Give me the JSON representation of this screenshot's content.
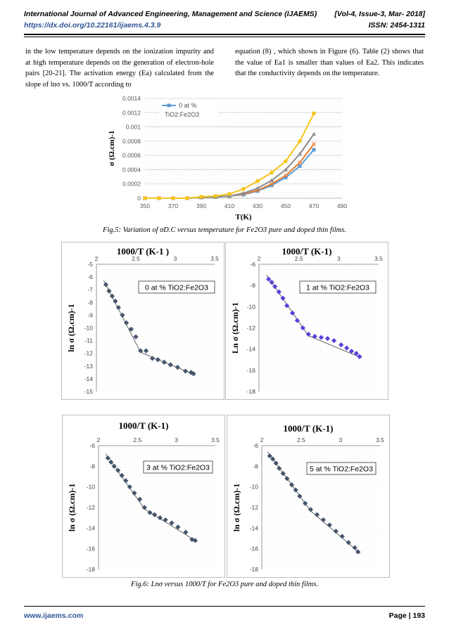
{
  "header": {
    "journal": "International Journal of Advanced Engineering, Management and Science (IJAEMS)",
    "volume": "[Vol-4, Issue-3, Mar- 2018]",
    "doi": "https://dx.doi.org/10.22161/ijaems.4.3.9",
    "issn": "ISSN: 2454-1311"
  },
  "body": {
    "left_text": "in the low temperature depends on the ionization impurity and at high temperature depends on the generation of electron-hole pairs [20-21]. The activation energy (Ea) calculated from the slope of lnσ vs. 1000/T according to",
    "right_text": "equation (8) , which shown in Figure (6). Table (2) shows that the value of Ea1 is smaller than values of Ea2. This indicates that the conductivity depends on the temperature."
  },
  "captions": {
    "fig5": "Fig.5: Variation of σD.C versus temperature for Fe2O3 pure and doped thin films.",
    "fig6": "Fig.6: Lnσ versus 1000/T for Fe2O3 pure and doped thin films."
  },
  "footer": {
    "site": "www.ijaems.com",
    "page": "Page | 193"
  },
  "fig5": {
    "chart_data": {
      "type": "line",
      "xlabel": "T(K)",
      "ylabel": "σ (Ω.cm)-1",
      "xlim": [
        350,
        490
      ],
      "ylim": [
        0,
        0.0014
      ],
      "xticks": [
        "350",
        "370",
        "390",
        "410",
        "430",
        "450",
        "470",
        "490"
      ],
      "yticks": [
        "0",
        "0.0002",
        "0.0004",
        "0.0006",
        "0.0008",
        "0.001",
        "0.0012",
        "0.0014"
      ],
      "legend": [
        "0 at %",
        "TiO2:Fe2O3"
      ],
      "x": [
        350,
        360,
        370,
        380,
        390,
        400,
        410,
        420,
        430,
        440,
        450,
        460,
        470
      ],
      "series": [
        {
          "name": "0 at % TiO2:Fe2O3",
          "color": "#5b9bd5",
          "marker": "square",
          "values": [
            0,
            0,
            0,
            0,
            1e-05,
            1.5e-05,
            3e-05,
            5e-05,
            0.0001,
            0.00018,
            0.00029,
            0.00045,
            0.00068
          ]
        },
        {
          "color": "#ed7d31",
          "marker": "x",
          "values": [
            0,
            0,
            0,
            0,
            1e-05,
            2e-05,
            3e-05,
            6e-05,
            0.00011,
            0.0002,
            0.00032,
            0.0005,
            0.00076
          ]
        },
        {
          "color": "#8c8c8c",
          "marker": "triangle",
          "values": [
            0,
            0,
            0,
            0,
            1e-05,
            2e-05,
            3e-05,
            7e-05,
            0.00014,
            0.00025,
            0.0004,
            0.00062,
            0.0009
          ]
        },
        {
          "color": "#f5c518",
          "marker": "circle",
          "values": [
            0,
            0,
            0,
            0,
            2e-05,
            3e-05,
            6e-05,
            0.00013,
            0.00024,
            0.00036,
            0.00052,
            0.0008,
            0.00119
          ]
        }
      ],
      "grid": true,
      "legend_position": "top-left"
    }
  },
  "fig6": [
    {
      "chart_data": {
        "type": "scatter",
        "title": "1000/T (K-1 )",
        "ylabel": "ln σ (Ω.cm)-1",
        "label": "0 at % TiO2:Fe2O3",
        "color": "#44546a",
        "xlim": [
          2,
          3.5
        ],
        "ylim": [
          -15,
          -5
        ],
        "xticks": [
          "2",
          "2.5",
          "3",
          "3.5"
        ],
        "yticks": [
          "-5",
          "-6",
          "-7",
          "-8",
          "-9",
          "-10",
          "-11",
          "-12",
          "-13",
          "-14",
          "-15"
        ],
        "x": [
          2.12,
          2.16,
          2.2,
          2.24,
          2.28,
          2.33,
          2.38,
          2.44,
          2.5,
          2.56,
          2.63,
          2.71,
          2.78,
          2.86,
          2.94,
          3.03,
          3.13,
          3.2,
          3.23
        ],
        "y": [
          -6.6,
          -7.1,
          -7.5,
          -7.9,
          -8.4,
          -9.0,
          -9.6,
          -10.1,
          -10.7,
          -11.8,
          -11.8,
          -12.4,
          -12.5,
          -12.7,
          -12.9,
          -13.1,
          -13.4,
          -13.5,
          -13.6
        ]
      }
    },
    {
      "chart_data": {
        "type": "scatter",
        "title": "1000/T (K-1)",
        "ylabel": "Ln σ (Ω.cm)-1",
        "label": "1 at % TiO2:Fe2O3",
        "color": "#5b3fd9",
        "xlim": [
          2,
          3.5
        ],
        "ylim": [
          -18,
          -6
        ],
        "xticks": [
          "2",
          "2.5",
          "3",
          "3.5"
        ],
        "yticks": [
          "-6",
          "-8",
          "-10",
          "-12",
          "-14",
          "-16",
          "-18"
        ],
        "x": [
          2.12,
          2.16,
          2.2,
          2.25,
          2.3,
          2.35,
          2.42,
          2.48,
          2.55,
          2.62,
          2.7,
          2.78,
          2.86,
          2.94,
          3.03,
          3.1,
          3.16,
          3.22,
          3.26
        ],
        "y": [
          -7.4,
          -7.7,
          -8.1,
          -8.6,
          -9.2,
          -9.9,
          -10.6,
          -11.3,
          -12.0,
          -12.6,
          -12.8,
          -12.9,
          -13.0,
          -13.2,
          -13.6,
          -13.9,
          -14.2,
          -14.4,
          -14.7
        ]
      }
    },
    {
      "chart_data": {
        "type": "scatter",
        "title": "1000/T (K-1)",
        "ylabel": "ln σ (Ω.cm)-1",
        "label": "3 at % TiO2:Fe2O3",
        "color": "#44546a",
        "xlim": [
          2,
          3.5
        ],
        "ylim": [
          -18,
          -6
        ],
        "xticks": [
          "2",
          "2.5",
          "3",
          "3.5"
        ],
        "yticks": [
          "-6",
          "-8",
          "-10",
          "-12",
          "-14",
          "-16",
          "-18"
        ],
        "x": [
          2.12,
          2.16,
          2.2,
          2.25,
          2.3,
          2.35,
          2.4,
          2.46,
          2.53,
          2.59,
          2.66,
          2.72,
          2.79,
          2.86,
          2.94,
          3.02,
          3.12,
          3.2,
          3.24
        ],
        "y": [
          -7.2,
          -7.6,
          -8.0,
          -8.4,
          -8.9,
          -9.4,
          -10.0,
          -10.6,
          -11.2,
          -12.0,
          -12.5,
          -12.7,
          -13.0,
          -13.2,
          -13.5,
          -13.9,
          -14.4,
          -15.1,
          -15.2
        ]
      }
    },
    {
      "chart_data": {
        "type": "scatter",
        "title": "1000/T (K-1)",
        "ylabel": "ln σ (Ω.cm)-1",
        "label": "5 at % TiO2:Fe2O3",
        "color": "#44546a",
        "xlim": [
          2,
          3.5
        ],
        "ylim": [
          -18,
          -6
        ],
        "xticks": [
          "2",
          "2.5",
          "3",
          "3.5"
        ],
        "yticks": [
          "-6",
          "-8",
          "-10",
          "-12",
          "-14",
          "-16",
          "-18"
        ],
        "x": [
          2.1,
          2.14,
          2.18,
          2.22,
          2.27,
          2.32,
          2.38,
          2.43,
          2.48,
          2.55,
          2.62,
          2.7,
          2.78,
          2.86,
          2.94,
          3.02,
          3.1,
          3.18,
          3.22
        ],
        "y": [
          -7.0,
          -7.3,
          -7.7,
          -8.2,
          -8.7,
          -9.2,
          -9.8,
          -10.3,
          -10.9,
          -11.6,
          -12.2,
          -12.7,
          -13.2,
          -13.7,
          -14.3,
          -14.8,
          -15.4,
          -15.9,
          -16.3
        ]
      }
    }
  ]
}
